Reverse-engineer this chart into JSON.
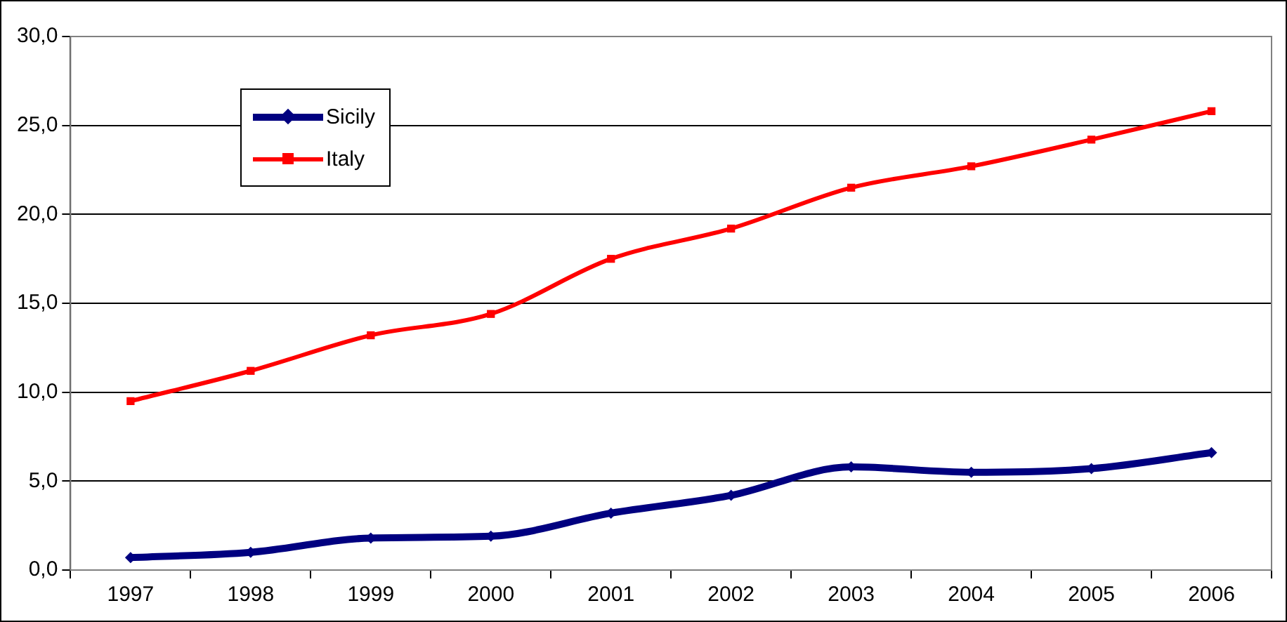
{
  "chart_data": {
    "type": "line",
    "categories": [
      "1997",
      "1998",
      "1999",
      "2000",
      "2001",
      "2002",
      "2003",
      "2004",
      "2005",
      "2006"
    ],
    "series": [
      {
        "name": "Sicily",
        "color": "#000080",
        "marker": "diamond",
        "values": [
          0.7,
          1.0,
          1.8,
          1.9,
          3.2,
          4.2,
          5.8,
          5.5,
          5.7,
          6.6
        ]
      },
      {
        "name": "Italy",
        "color": "#ff0000",
        "marker": "square",
        "values": [
          9.5,
          11.2,
          13.2,
          14.4,
          17.5,
          19.2,
          21.5,
          22.7,
          24.2,
          25.8
        ]
      }
    ],
    "ylim": [
      0,
      30
    ],
    "yticks": [
      {
        "value": 0,
        "label": "0,0"
      },
      {
        "value": 5,
        "label": "5,0"
      },
      {
        "value": 10,
        "label": "10,0"
      },
      {
        "value": 15,
        "label": "15,0"
      },
      {
        "value": 20,
        "label": "20,0"
      },
      {
        "value": 25,
        "label": "25,0"
      },
      {
        "value": 30,
        "label": "30,0"
      }
    ],
    "grid": "y",
    "legend": "top left"
  }
}
